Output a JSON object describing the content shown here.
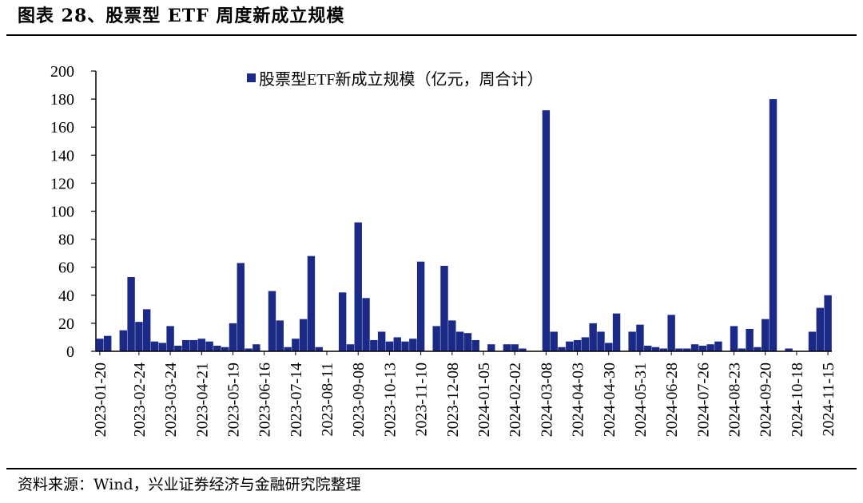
{
  "figure": {
    "title": "图表 28、股票型 ETF 周度新成立规模",
    "source": "资料来源：Wind，兴业证券经济与金融研究院整理"
  },
  "colors": {
    "bar": "#1b2a86",
    "axis": "#000000",
    "background": "#ffffff"
  },
  "chart_data": {
    "type": "bar",
    "title": "",
    "xlabel": "",
    "ylabel": "",
    "ylim": [
      0,
      200
    ],
    "yticks": [
      0,
      20,
      40,
      60,
      80,
      100,
      120,
      140,
      160,
      180,
      200
    ],
    "legend": {
      "label": "股票型ETF新成立规模（亿元，周合计）",
      "position": "top-center"
    },
    "series": [
      {
        "name": "股票型ETF新成立规模（亿元，周合计）",
        "values": [
          9,
          11,
          0,
          15,
          53,
          21,
          30,
          7,
          6,
          18,
          4,
          8,
          8,
          9,
          7,
          4,
          3,
          20,
          63,
          2,
          5,
          0,
          43,
          22,
          3,
          9,
          23,
          68,
          3,
          0,
          0,
          42,
          5,
          92,
          38,
          8,
          14,
          7,
          10,
          7,
          9,
          64,
          0,
          18,
          61,
          22,
          14,
          13,
          8,
          0,
          5,
          0,
          5,
          5,
          2,
          0,
          0,
          172,
          14,
          3,
          7,
          8,
          10,
          20,
          14,
          6,
          27,
          0,
          14,
          19,
          4,
          3,
          2,
          26,
          2,
          2,
          5,
          4,
          5,
          7,
          0,
          18,
          2,
          16,
          3,
          23,
          180,
          0,
          2,
          0,
          0,
          14,
          31,
          40
        ]
      }
    ],
    "tick_labels": [
      {
        "index": 0,
        "label": "2023-01-20"
      },
      {
        "index": 5,
        "label": "2023-02-24"
      },
      {
        "index": 9,
        "label": "2023-03-24"
      },
      {
        "index": 13,
        "label": "2023-04-21"
      },
      {
        "index": 17,
        "label": "2023-05-19"
      },
      {
        "index": 21,
        "label": "2023-06-16"
      },
      {
        "index": 25,
        "label": "2023-07-14"
      },
      {
        "index": 29,
        "label": "2023-08-11"
      },
      {
        "index": 33,
        "label": "2023-09-08"
      },
      {
        "index": 37,
        "label": "2023-10-13"
      },
      {
        "index": 41,
        "label": "2023-11-10"
      },
      {
        "index": 45,
        "label": "2023-12-08"
      },
      {
        "index": 49,
        "label": "2024-01-05"
      },
      {
        "index": 53,
        "label": "2024-02-02"
      },
      {
        "index": 57,
        "label": "2024-03-08"
      },
      {
        "index": 61,
        "label": "2024-04-03"
      },
      {
        "index": 65,
        "label": "2024-04-30"
      },
      {
        "index": 69,
        "label": "2024-05-31"
      },
      {
        "index": 73,
        "label": "2024-06-28"
      },
      {
        "index": 77,
        "label": "2024-07-26"
      },
      {
        "index": 81,
        "label": "2024-08-23"
      },
      {
        "index": 85,
        "label": "2024-09-20"
      },
      {
        "index": 89,
        "label": "2024-10-18"
      },
      {
        "index": 93,
        "label": "2024-11-15"
      }
    ]
  }
}
